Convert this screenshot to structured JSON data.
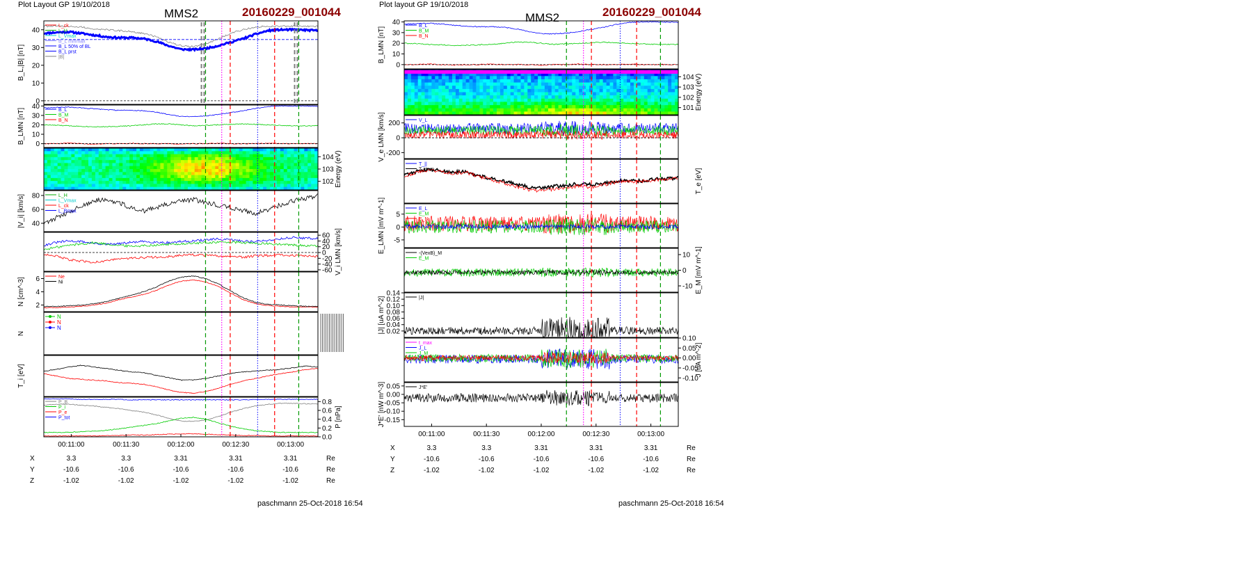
{
  "left": {
    "header": "Plot Layout GP 19/10/2018",
    "spacecraft": "MMS2",
    "event": "20160229_001044",
    "footer": "paschmann 25-Oct-2018 16:54",
    "time_ticks": [
      "00:11:00",
      "00:11:30",
      "00:12:00",
      "00:12:30",
      "00:13:00"
    ],
    "ephemeris": [
      {
        "label": "X",
        "values": [
          "3.3",
          "3.3",
          "3.31",
          "3.31",
          "3.31"
        ],
        "unit": "Re"
      },
      {
        "label": "Y",
        "values": [
          "-10.6",
          "-10.6",
          "-10.6",
          "-10.6",
          "-10.6"
        ],
        "unit": "Re"
      },
      {
        "label": "Z",
        "values": [
          "-1.02",
          "-1.02",
          "-1.02",
          "-1.02",
          "-1.02"
        ],
        "unit": "Re"
      }
    ]
  },
  "right": {
    "header": "Plot layout GP 19/10/2018",
    "spacecraft": "MMS2",
    "event": "20160229_001044",
    "footer": "paschmann 25-Oct-2018 16:54",
    "time_ticks": [
      "00:11:00",
      "00:11:30",
      "00:12:00",
      "00:12:30",
      "00:13:00"
    ],
    "ephemeris": [
      {
        "label": "X",
        "values": [
          "3.3",
          "3.3",
          "3.31",
          "3.31",
          "3.31"
        ],
        "unit": "Re"
      },
      {
        "label": "Y",
        "values": [
          "-10.6",
          "-10.6",
          "-10.6",
          "-10.6",
          "-10.6"
        ],
        "unit": "Re"
      },
      {
        "label": "Z",
        "values": [
          "-1.02",
          "-1.02",
          "-1.02",
          "-1.02",
          "-1.02"
        ],
        "unit": "Re"
      }
    ]
  },
  "colors": {
    "blue": "#0000ff",
    "green": "#00cc00",
    "red": "#ff0000",
    "black": "#000000",
    "gray": "#808080",
    "magenta": "#ff00ff",
    "darkred": "#8b0000"
  },
  "chart_data": [
    {
      "id": "L1",
      "type": "line",
      "ylabel": "B_L,|B| [nT]",
      "ylim": [
        -2,
        45
      ],
      "yticks": [
        "0",
        "10",
        "20",
        "30",
        "40"
      ],
      "legend": [
        "L_ck",
        "L_H",
        "L_Vmax",
        "B_L minmax",
        "B_L 50% of BL",
        "B_L prst",
        "|B|"
      ],
      "series": [
        {
          "name": "B_L",
          "color": "#0000ff",
          "values": [
            38,
            38.5,
            38.8,
            38,
            37,
            36,
            35.5,
            35.5,
            35,
            33.5,
            31,
            29,
            28.8,
            29.5,
            31,
            33,
            35,
            37.5,
            39.5,
            40,
            40,
            39.8,
            39.5
          ]
        },
        {
          "name": "|B|",
          "color": "#808080",
          "values": [
            42,
            42,
            42,
            41.5,
            40.5,
            40,
            39.5,
            39,
            38,
            36,
            33,
            31,
            30.5,
            32,
            35,
            38,
            40,
            41.5,
            42,
            42,
            42,
            42,
            42
          ]
        }
      ]
    },
    {
      "id": "L2",
      "type": "line",
      "ylabel": "B_LMN [nT]",
      "ylim": [
        -4,
        41
      ],
      "yticks": [
        "0",
        "10",
        "20",
        "30",
        "40"
      ],
      "legend": [
        "B_L",
        "B_M",
        "B_N"
      ],
      "series": [
        {
          "name": "B_L",
          "color": "#0000ff",
          "values": [
            38,
            38.5,
            38.8,
            38,
            37,
            36,
            35.5,
            35.5,
            35,
            33.5,
            31,
            29,
            28.8,
            29.5,
            31,
            33,
            35,
            37.5,
            39.5,
            40,
            40,
            39.8,
            39.5
          ]
        },
        {
          "name": "B_M",
          "color": "#00cc00",
          "values": [
            20,
            19.5,
            19,
            18.5,
            18,
            18,
            18.5,
            19,
            20,
            21,
            21,
            20,
            19,
            19.5,
            20,
            20.5,
            21,
            20.5,
            20,
            19.5,
            19,
            19,
            19
          ]
        },
        {
          "name": "B_N",
          "color": "#ff0000",
          "values": [
            0,
            0,
            0.5,
            0,
            -0.5,
            0,
            0,
            0.5,
            0,
            0,
            0,
            -0.5,
            0,
            0,
            0.5,
            0,
            0,
            0,
            0.5,
            0,
            0,
            0,
            0
          ]
        }
      ]
    },
    {
      "id": "L3",
      "type": "heatmap",
      "ylabel": "Energy (eV)",
      "yticks": [
        "10^2",
        "10^3",
        "10^4"
      ]
    },
    {
      "id": "L4",
      "type": "line",
      "ylabel": "|V_i| [km/s]",
      "ylim": [
        28,
        87
      ],
      "yticks": [
        "40",
        "60",
        "80"
      ],
      "legend": [
        "L_H",
        "L_Vmax",
        "L_ck",
        "L_Bmax"
      ],
      "series": [
        {
          "name": "|V_i|",
          "color": "#000000",
          "values": [
            40,
            48,
            56,
            65,
            72,
            74,
            70,
            62,
            58,
            63,
            68,
            72,
            74,
            70,
            66,
            62,
            58,
            54,
            60,
            66,
            72,
            76,
            80
          ]
        }
      ]
    },
    {
      "id": "L5",
      "type": "line",
      "ylabel": "V_i LMN [km/s]",
      "ylim": [
        -65,
        70
      ],
      "yticks": [
        "60",
        "40",
        "20",
        "0",
        "-20",
        "-40",
        "-60"
      ],
      "series": [
        {
          "name": "V_iL",
          "color": "#0000ff",
          "values": [
            25,
            35,
            40,
            38,
            32,
            28,
            30,
            35,
            38,
            36,
            34,
            38,
            40,
            44,
            46,
            44,
            40,
            38,
            42,
            48,
            52,
            50,
            48
          ]
        },
        {
          "name": "V_iM",
          "color": "#00cc00",
          "values": [
            10,
            18,
            25,
            30,
            34,
            30,
            25,
            22,
            24,
            26,
            28,
            30,
            32,
            34,
            36,
            36,
            34,
            32,
            30,
            28,
            26,
            24,
            22
          ]
        },
        {
          "name": "V_iN",
          "color": "#ff0000",
          "values": [
            -5,
            -12,
            -25,
            -30,
            -34,
            -28,
            -22,
            -20,
            -18,
            -16,
            -14,
            -10,
            -8,
            -10,
            -12,
            -14,
            -16,
            -12,
            -10,
            -8,
            -10,
            -12,
            -15
          ]
        }
      ]
    },
    {
      "id": "L6",
      "type": "line",
      "ylabel": "N [cm^-3]",
      "ylim": [
        1,
        7
      ],
      "yticks": [
        "2",
        "4",
        "6"
      ],
      "legend": [
        "Ne",
        "Ni"
      ],
      "series": [
        {
          "name": "Ne",
          "color": "#ff0000",
          "values": [
            1.6,
            1.6,
            1.7,
            1.8,
            2,
            2.3,
            2.8,
            3.2,
            3.6,
            4.2,
            5,
            5.6,
            5.8,
            5.5,
            4.8,
            3.8,
            2.8,
            2.2,
            1.9,
            1.8,
            1.7,
            1.7,
            1.7
          ]
        },
        {
          "name": "Ni",
          "color": "#000000",
          "values": [
            1.8,
            1.8,
            1.9,
            2,
            2.2,
            2.5,
            3,
            3.5,
            4,
            4.7,
            5.6,
            6.2,
            6.4,
            6,
            5.2,
            4.1,
            3.1,
            2.4,
            2.1,
            2,
            1.9,
            1.8,
            1.8
          ]
        }
      ]
    },
    {
      "id": "L7",
      "type": "line",
      "ylabel": "N",
      "legend": [
        "N",
        "N",
        "N"
      ]
    },
    {
      "id": "L8",
      "type": "line",
      "ylabel": "T_i [eV]",
      "series": [
        {
          "name": "T_i",
          "color": "#000000",
          "values": [
            0.62,
            0.66,
            0.72,
            0.76,
            0.72,
            0.68,
            0.64,
            0.6,
            0.58,
            0.52,
            0.46,
            0.4,
            0.4,
            0.44,
            0.5,
            0.56,
            0.6,
            0.62,
            0.64,
            0.66,
            0.7,
            0.74,
            0.72
          ]
        },
        {
          "name": "T_e",
          "color": "#ff0000",
          "values": [
            0.55,
            0.5,
            0.44,
            0.42,
            0.4,
            0.38,
            0.34,
            0.32,
            0.3,
            0.24,
            0.16,
            0.1,
            0.08,
            0.12,
            0.2,
            0.3,
            0.38,
            0.44,
            0.5,
            0.56,
            0.6,
            0.66,
            0.68
          ]
        }
      ]
    },
    {
      "id": "L9",
      "type": "line",
      "ylabel": "P [nPa]",
      "ylim": [
        0,
        0.9
      ],
      "yticks": [
        "0.8",
        "0.6",
        "0.4",
        "0.2",
        "0.0"
      ],
      "legend": [
        "P_B",
        "P_i",
        "P_e",
        "P_tot"
      ],
      "series": [
        {
          "name": "P_tot",
          "color": "#0000ff",
          "values": [
            0.86,
            0.86,
            0.86,
            0.85,
            0.85,
            0.85,
            0.85,
            0.84,
            0.84,
            0.84,
            0.84,
            0.84,
            0.84,
            0.84,
            0.84,
            0.84,
            0.84,
            0.85,
            0.85,
            0.85,
            0.85,
            0.85,
            0.85
          ]
        },
        {
          "name": "P_B",
          "color": "#808080",
          "values": [
            0.72,
            0.74,
            0.74,
            0.72,
            0.7,
            0.67,
            0.64,
            0.6,
            0.56,
            0.5,
            0.42,
            0.36,
            0.35,
            0.38,
            0.46,
            0.56,
            0.64,
            0.7,
            0.74,
            0.76,
            0.76,
            0.75,
            0.75
          ]
        },
        {
          "name": "P_i",
          "color": "#00cc00",
          "values": [
            0.1,
            0.1,
            0.1,
            0.12,
            0.13,
            0.15,
            0.18,
            0.22,
            0.26,
            0.3,
            0.36,
            0.42,
            0.44,
            0.4,
            0.32,
            0.24,
            0.18,
            0.14,
            0.12,
            0.1,
            0.1,
            0.1,
            0.1
          ]
        },
        {
          "name": "P_e",
          "color": "#ff0000",
          "values": [
            0.02,
            0.02,
            0.02,
            0.02,
            0.02,
            0.03,
            0.03,
            0.04,
            0.04,
            0.05,
            0.06,
            0.07,
            0.07,
            0.06,
            0.05,
            0.04,
            0.03,
            0.03,
            0.02,
            0.02,
            0.02,
            0.02,
            0.02
          ]
        }
      ]
    },
    {
      "id": "R1",
      "type": "line",
      "ylabel": "B_LMN [nT]",
      "ylim": [
        -4,
        41
      ],
      "yticks": [
        "0",
        "10",
        "20",
        "30",
        "40"
      ],
      "legend": [
        "B_L",
        "B_M",
        "B_N"
      ],
      "series": [
        {
          "name": "B_L",
          "color": "#0000ff",
          "values": [
            38,
            38.5,
            38.8,
            38,
            37,
            36,
            35.5,
            35.5,
            35,
            33.5,
            31,
            29,
            28.8,
            29.5,
            31,
            33,
            35,
            37.5,
            39.5,
            40,
            40,
            39.8,
            39.5
          ]
        },
        {
          "name": "B_M",
          "color": "#00cc00",
          "values": [
            20,
            19.5,
            19,
            18.5,
            18,
            18,
            18.5,
            19,
            20,
            21,
            21,
            20,
            19,
            19.5,
            20,
            20.5,
            21,
            20.5,
            20,
            19.5,
            19,
            19,
            19
          ]
        },
        {
          "name": "B_N",
          "color": "#ff0000",
          "values": [
            0,
            0,
            0.5,
            0,
            -0.5,
            0,
            0,
            0.5,
            0,
            0,
            0,
            -0.5,
            0,
            0,
            0.5,
            0,
            0,
            0,
            0.5,
            0,
            0,
            0,
            0
          ]
        }
      ]
    },
    {
      "id": "R2",
      "type": "heatmap",
      "ylabel": "Energy (eV)",
      "yticks": [
        "10^1",
        "10^2",
        "10^3",
        "10^4"
      ]
    },
    {
      "id": "R3",
      "type": "line",
      "ylabel": "V_e LMN [km/s]",
      "ylim": [
        -280,
        300
      ],
      "yticks": [
        "200",
        "0",
        "-200"
      ],
      "legend": [
        "V_L"
      ]
    },
    {
      "id": "R4",
      "type": "line",
      "ylabel": "T_e [eV]",
      "legend": [
        "T_||",
        "T_perp"
      ],
      "series": [
        {
          "name": "T_perp",
          "color": "#000000",
          "values": [
            0.65,
            0.72,
            0.78,
            0.74,
            0.7,
            0.72,
            0.62,
            0.56,
            0.5,
            0.44,
            0.36,
            0.34,
            0.38,
            0.4,
            0.44,
            0.42,
            0.44,
            0.5,
            0.52,
            0.5,
            0.54,
            0.56,
            0.58
          ]
        },
        {
          "name": "T_par",
          "color": "#ff0000",
          "values": [
            0.62,
            0.7,
            0.76,
            0.72,
            0.68,
            0.7,
            0.6,
            0.54,
            0.46,
            0.38,
            0.3,
            0.28,
            0.32,
            0.34,
            0.4,
            0.36,
            0.42,
            0.48,
            0.5,
            0.5,
            0.52,
            0.55,
            0.57
          ]
        }
      ]
    },
    {
      "id": "R5",
      "type": "line",
      "ylabel": "E_LMN [mV m^-1]",
      "ylim": [
        -8,
        9
      ],
      "yticks": [
        "5",
        "0",
        "-5"
      ],
      "legend": [
        "E_L",
        "E_M",
        "E_N"
      ]
    },
    {
      "id": "R6",
      "type": "line",
      "ylabel": "E_M [mV m^-1]",
      "ylim": [
        -14,
        14
      ],
      "yticks": [
        "10",
        "0",
        "-10"
      ],
      "legend": [
        "-(VexB)_M",
        "E_M"
      ]
    },
    {
      "id": "R7",
      "type": "line",
      "ylabel": "|J| [uA m^-2]",
      "ylim": [
        0,
        0.14
      ],
      "yticks": [
        "0.14",
        "0.12",
        "0.10",
        "0.08",
        "0.06",
        "0.04",
        "0.02"
      ],
      "legend": [
        "|J|"
      ]
    },
    {
      "id": "R8",
      "type": "line",
      "ylabel": "J [uA m^-2]",
      "ylim": [
        -0.12,
        0.1
      ],
      "yticks": [
        "0.10",
        "0.05",
        "0.00",
        "-0.05",
        "-0.10"
      ],
      "legend": [
        "t_max",
        "J_L",
        "J_M",
        "J_N"
      ]
    },
    {
      "id": "R9",
      "type": "line",
      "ylabel": "J*E' [nW m^-3]",
      "ylim": [
        -0.19,
        0.07
      ],
      "yticks": [
        "0.05",
        "0.00",
        "-0.05",
        "-0.10",
        "-0.15"
      ],
      "legend": [
        "J*E'"
      ]
    }
  ]
}
